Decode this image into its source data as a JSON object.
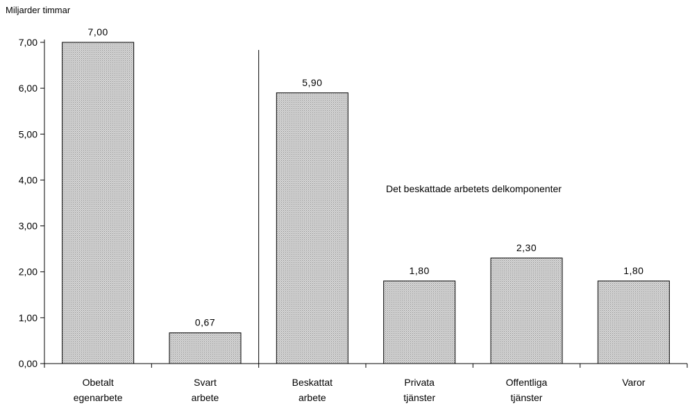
{
  "chart_data": {
    "type": "bar",
    "ylabel": "Miljarder timmar",
    "ylim": [
      0,
      7
    ],
    "yticks": [
      "0,00",
      "1,00",
      "2,00",
      "3,00",
      "4,00",
      "5,00",
      "6,00",
      "7,00"
    ],
    "categories": [
      [
        "Obetalt",
        "egenarbete"
      ],
      [
        "Svart",
        "arbete"
      ],
      [
        "Beskattat",
        "arbete"
      ],
      [
        "Privata",
        "tjänster"
      ],
      [
        "Offentliga",
        "tjänster"
      ],
      [
        "Varor"
      ]
    ],
    "values": [
      7.0,
      0.67,
      5.9,
      1.8,
      2.3,
      1.8
    ],
    "value_labels": [
      "7,00",
      "0,67",
      "5,90",
      "1,80",
      "2,30",
      "1,80"
    ],
    "annotation": "Det beskattade arbetets delkomponenter",
    "bar_fill": "#b8b8b8",
    "grid": false
  }
}
